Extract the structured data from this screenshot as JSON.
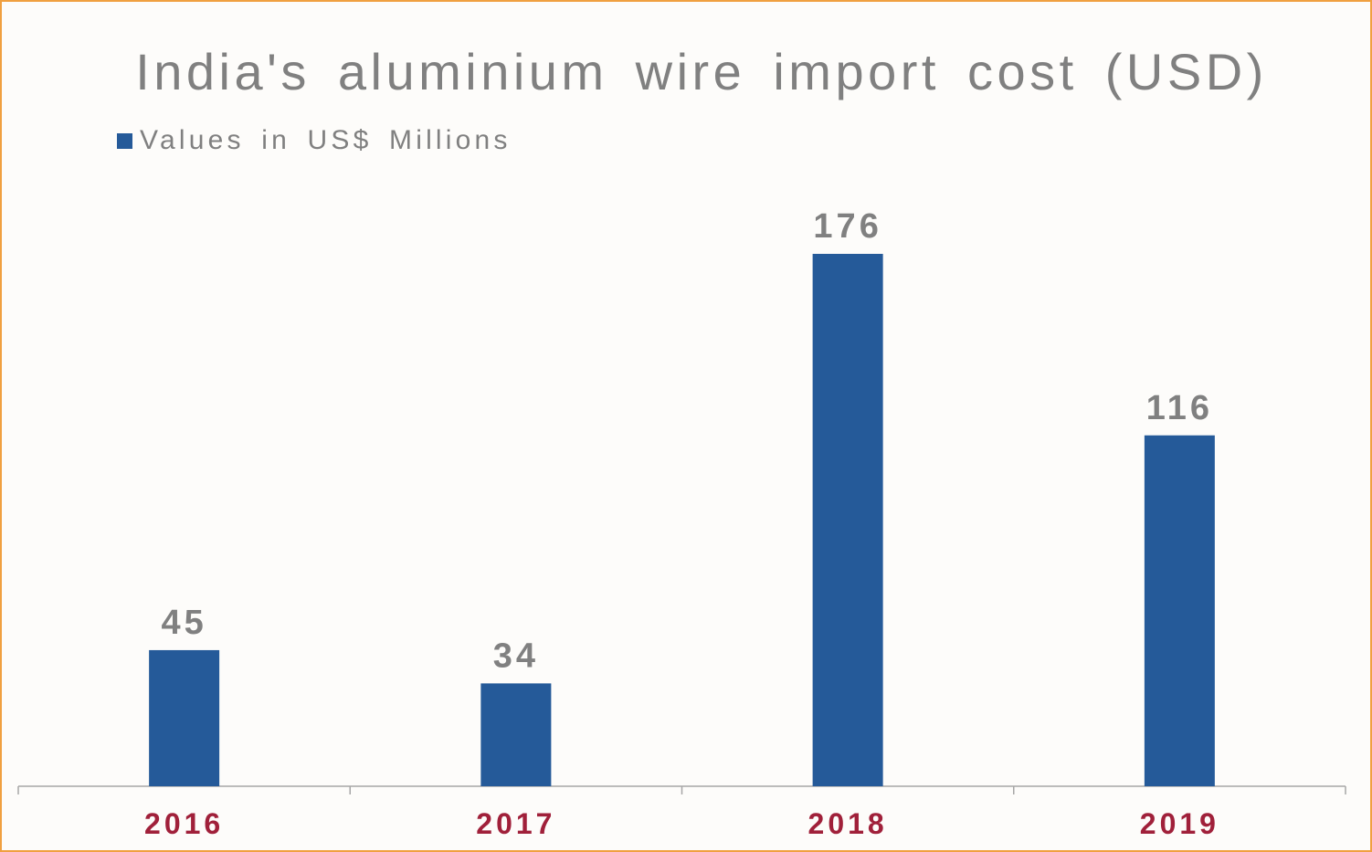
{
  "colors": {
    "border": "#f0a040",
    "background": "#fdfcfa",
    "bar": "#255a99",
    "text_gray": "#808080",
    "tick_label": "#a0203a",
    "axis": "#a6a6a6"
  },
  "chart_data": {
    "type": "bar",
    "title": "India's aluminium wire import cost (USD)",
    "categories": [
      "2016",
      "2017",
      "2018",
      "2019"
    ],
    "series": [
      {
        "name": "Values in US$ Millions",
        "values": [
          45,
          34,
          176,
          116
        ]
      }
    ],
    "ylim": [
      0,
      176
    ],
    "data_labels": true,
    "grid": false,
    "legend_position": "top-left",
    "xlabel": "",
    "ylabel": ""
  }
}
